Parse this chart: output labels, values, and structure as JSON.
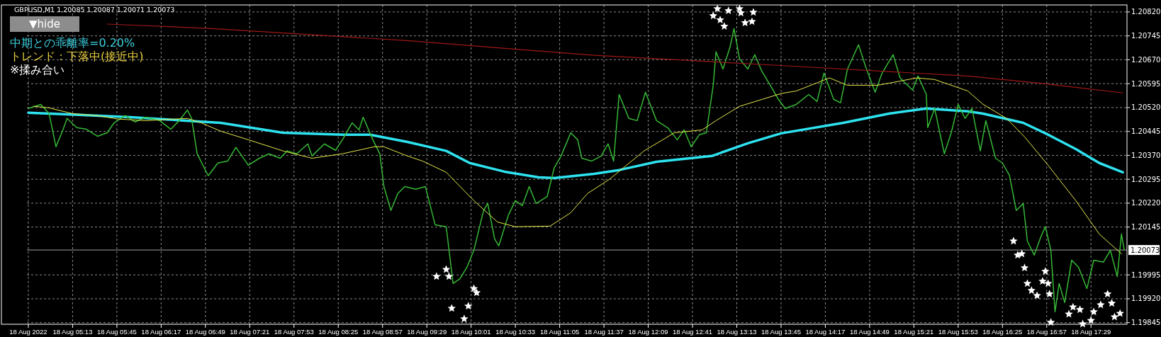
{
  "chart_data": {
    "type": "line",
    "title": "GBPUSD,M1  1.20085 1.20087 1.20071 1.20073",
    "annotations": [
      "▼hide",
      "中期との乖離率=0.20%",
      "トレンド：下落中(接近中)",
      "※揉み合い"
    ],
    "xlim": [
      "2022-08-18T04:40",
      "2022-08-18T17:55"
    ],
    "ylim": [
      1.1984,
      1.20842
    ],
    "xticks": [
      {
        "value": "2022-08-18T04:41",
        "label": "18 Aug 2022"
      },
      {
        "value": "2022-08-18T05:13",
        "label": "18 Aug 05:13"
      },
      {
        "value": "2022-08-18T05:45",
        "label": "18 Aug 05:45"
      },
      {
        "value": "2022-08-18T06:17",
        "label": "18 Aug 06:17"
      },
      {
        "value": "2022-08-18T06:49",
        "label": "18 Aug 06:49"
      },
      {
        "value": "2022-08-18T07:21",
        "label": "18 Aug 07:21"
      },
      {
        "value": "2022-08-18T07:53",
        "label": "18 Aug 07:53"
      },
      {
        "value": "2022-08-18T08:25",
        "label": "18 Aug 08:25"
      },
      {
        "value": "2022-08-18T08:57",
        "label": "18 Aug 08:57"
      },
      {
        "value": "2022-08-18T09:29",
        "label": "18 Aug 09:29"
      },
      {
        "value": "2022-08-18T10:01",
        "label": "18 Aug 10:01"
      },
      {
        "value": "2022-08-18T10:33",
        "label": "18 Aug 10:33"
      },
      {
        "value": "2022-08-18T11:05",
        "label": "18 Aug 11:05"
      },
      {
        "value": "2022-08-18T11:37",
        "label": "18 Aug 11:37"
      },
      {
        "value": "2022-08-18T12:09",
        "label": "18 Aug 12:09"
      },
      {
        "value": "2022-08-18T12:41",
        "label": "18 Aug 12:41"
      },
      {
        "value": "2022-08-18T13:13",
        "label": "18 Aug 13:13"
      },
      {
        "value": "2022-08-18T13:45",
        "label": "18 Aug 13:45"
      },
      {
        "value": "2022-08-18T14:17",
        "label": "18 Aug 14:17"
      },
      {
        "value": "2022-08-18T14:49",
        "label": "18 Aug 14:49"
      },
      {
        "value": "2022-08-18T15:21",
        "label": "18 Aug 15:21"
      },
      {
        "value": "2022-08-18T15:53",
        "label": "18 Aug 15:53"
      },
      {
        "value": "2022-08-18T16:25",
        "label": "18 Aug 16:25"
      },
      {
        "value": "2022-08-18T16:57",
        "label": "18 Aug 16:57"
      },
      {
        "value": "2022-08-18T17:29",
        "label": "18 Aug 17:29"
      }
    ],
    "yticks": [
      {
        "value": 1.2082,
        "label": "1.20820"
      },
      {
        "value": 1.20745,
        "label": "1.20745"
      },
      {
        "value": 1.2067,
        "label": "1.20670"
      },
      {
        "value": 1.20595,
        "label": "1.20595"
      },
      {
        "value": 1.2052,
        "label": "1.20520"
      },
      {
        "value": 1.20445,
        "label": "1.20445"
      },
      {
        "value": 1.2037,
        "label": "1.20370"
      },
      {
        "value": 1.20295,
        "label": "1.20295"
      },
      {
        "value": 1.2022,
        "label": "1.20220"
      },
      {
        "value": 1.20145,
        "label": "1.20145"
      },
      {
        "value": 1.19995,
        "label": "1.19995"
      },
      {
        "value": 1.1992,
        "label": "1.19920"
      },
      {
        "value": 1.19845,
        "label": "1.19845"
      }
    ],
    "grid": true,
    "ref_lines": [
      {
        "axis": "y",
        "value": 1.20073,
        "label": "1.20073",
        "color": "#808080"
      }
    ],
    "series": [
      {
        "type": "line",
        "color": "#a01818",
        "x": [
          "2022-08-18T05:38",
          "2022-08-18T06:54",
          "2022-08-18T09:15",
          "2022-08-18T11:30",
          "2022-08-18T13:45",
          "2022-08-18T16:00",
          "2022-08-18T16:55",
          "2022-08-18T17:52"
        ],
        "values": [
          1.20782,
          1.20768,
          1.2073,
          1.20684,
          1.20652,
          1.20619,
          1.20595,
          1.20566
        ]
      },
      {
        "type": "line",
        "color": "#36b836",
        "x": [
          "2022-08-18T04:41",
          "2022-08-18T04:50",
          "2022-08-18T04:56",
          "2022-08-18T05:01",
          "2022-08-18T05:06",
          "2022-08-18T05:09",
          "2022-08-18T05:16",
          "2022-08-18T05:23",
          "2022-08-18T05:31",
          "2022-08-18T05:38",
          "2022-08-18T05:43",
          "2022-08-18T05:51",
          "2022-08-18T05:58",
          "2022-08-18T06:06",
          "2022-08-18T06:16",
          "2022-08-18T06:24",
          "2022-08-18T06:30",
          "2022-08-18T06:36",
          "2022-08-18T06:39",
          "2022-08-18T06:43",
          "2022-08-18T06:51",
          "2022-08-18T06:58",
          "2022-08-18T07:05",
          "2022-08-18T07:11",
          "2022-08-18T07:20",
          "2022-08-18T07:28",
          "2022-08-18T07:35",
          "2022-08-18T07:43",
          "2022-08-18T07:48",
          "2022-08-18T07:55",
          "2022-08-18T08:03",
          "2022-08-18T08:06",
          "2022-08-18T08:15",
          "2022-08-18T08:23",
          "2022-08-18T08:28",
          "2022-08-18T08:35",
          "2022-08-18T08:40",
          "2022-08-18T08:43",
          "2022-08-18T08:50",
          "2022-08-18T08:55",
          "2022-08-18T08:58",
          "2022-08-18T09:03",
          "2022-08-18T09:08",
          "2022-08-18T09:13",
          "2022-08-18T09:21",
          "2022-08-18T09:28",
          "2022-08-18T09:35",
          "2022-08-18T09:43",
          "2022-08-18T09:48",
          "2022-08-18T09:53",
          "2022-08-18T09:58",
          "2022-08-18T10:03",
          "2022-08-18T10:10",
          "2022-08-18T10:13",
          "2022-08-18T10:18",
          "2022-08-18T10:21",
          "2022-08-18T10:28",
          "2022-08-18T10:33",
          "2022-08-18T10:38",
          "2022-08-18T10:43",
          "2022-08-18T10:48",
          "2022-08-18T10:56",
          "2022-08-18T11:01",
          "2022-08-18T11:06",
          "2022-08-18T11:13",
          "2022-08-18T11:18",
          "2022-08-18T11:21",
          "2022-08-18T11:28",
          "2022-08-18T11:35",
          "2022-08-18T11:40",
          "2022-08-18T11:44",
          "2022-08-18T11:48",
          "2022-08-18T11:55",
          "2022-08-18T12:01",
          "2022-08-18T12:07",
          "2022-08-18T12:15",
          "2022-08-18T12:23",
          "2022-08-18T12:30",
          "2022-08-18T12:35",
          "2022-08-18T12:40",
          "2022-08-18T12:46",
          "2022-08-18T12:51",
          "2022-08-18T12:56",
          "2022-08-18T12:58",
          "2022-08-18T13:03",
          "2022-08-18T13:08",
          "2022-08-18T13:11",
          "2022-08-18T13:15",
          "2022-08-18T13:21",
          "2022-08-18T13:26",
          "2022-08-18T13:31",
          "2022-08-18T13:38",
          "2022-08-18T13:43",
          "2022-08-18T13:48",
          "2022-08-18T13:56",
          "2022-08-18T14:05",
          "2022-08-18T14:11",
          "2022-08-18T14:16",
          "2022-08-18T14:23",
          "2022-08-18T14:28",
          "2022-08-18T14:33",
          "2022-08-18T14:41",
          "2022-08-18T14:46",
          "2022-08-18T14:53",
          "2022-08-18T14:58",
          "2022-08-18T15:06",
          "2022-08-18T15:11",
          "2022-08-18T15:20",
          "2022-08-18T15:24",
          "2022-08-18T15:30",
          "2022-08-18T15:31",
          "2022-08-18T15:36",
          "2022-08-18T15:43",
          "2022-08-18T15:48",
          "2022-08-18T15:53",
          "2022-08-18T15:58",
          "2022-08-18T16:03",
          "2022-08-18T16:09",
          "2022-08-18T16:13",
          "2022-08-18T16:20",
          "2022-08-18T16:25",
          "2022-08-18T16:30",
          "2022-08-18T16:35",
          "2022-08-18T16:40",
          "2022-08-18T16:43",
          "2022-08-18T16:48",
          "2022-08-18T16:53",
          "2022-08-18T16:56",
          "2022-08-18T17:00",
          "2022-08-18T17:03",
          "2022-08-18T17:06",
          "2022-08-18T17:10",
          "2022-08-18T17:15",
          "2022-08-18T17:20",
          "2022-08-18T17:26",
          "2022-08-18T17:31",
          "2022-08-18T17:38",
          "2022-08-18T17:43",
          "2022-08-18T17:48",
          "2022-08-18T17:51",
          "2022-08-18T17:53"
        ],
        "values": [
          1.20517,
          1.2053,
          1.20501,
          1.20397,
          1.2045,
          1.20486,
          1.20457,
          1.20452,
          1.2043,
          1.20441,
          1.20472,
          1.20495,
          1.20475,
          1.2049,
          1.20479,
          1.20452,
          1.20479,
          1.20512,
          1.20486,
          1.20375,
          1.20306,
          1.20346,
          1.20352,
          1.20395,
          1.20339,
          1.20361,
          1.20375,
          1.20361,
          1.20384,
          1.20375,
          1.20406,
          1.20368,
          1.20406,
          1.20386,
          1.20419,
          1.20472,
          1.2045,
          1.2049,
          1.20419,
          1.20375,
          1.20272,
          1.20197,
          1.2025,
          1.20272,
          1.20264,
          1.20272,
          1.20152,
          1.20146,
          1.19968,
          1.19983,
          1.20019,
          1.20072,
          1.20197,
          1.20219,
          1.20108,
          1.20086,
          1.20183,
          1.20228,
          1.20212,
          1.20272,
          1.20219,
          1.20241,
          1.2033,
          1.20368,
          1.20441,
          1.20419,
          1.20361,
          1.20352,
          1.20368,
          1.20406,
          1.20352,
          1.20561,
          1.20486,
          1.20479,
          1.20568,
          1.20479,
          1.20457,
          1.20419,
          1.2045,
          1.20397,
          1.20435,
          1.20441,
          1.2059,
          1.20695,
          1.20641,
          1.20708,
          1.20768,
          1.20673,
          1.20641,
          1.20686,
          1.20635,
          1.20584,
          1.20546,
          1.20517,
          1.2053,
          1.20561,
          1.20539,
          1.20628,
          1.20546,
          1.20535,
          1.20641,
          1.20717,
          1.2065,
          1.20568,
          1.20628,
          1.20686,
          1.20613,
          1.20575,
          1.20619,
          1.20561,
          1.20457,
          1.20517,
          1.20375,
          1.20441,
          1.2053,
          1.20486,
          1.20517,
          1.20384,
          1.20479,
          1.20361,
          1.20346,
          1.20308,
          1.20197,
          1.20219,
          1.20101,
          1.20057,
          1.20117,
          1.20146,
          1.20072,
          1.19879,
          1.19968,
          1.19908,
          1.20041,
          1.20019,
          1.19952,
          1.20041,
          1.20035,
          1.20072,
          1.1999,
          1.20123,
          1.20073
        ]
      },
      {
        "type": "line",
        "color": "#e8e84a",
        "x": [
          "2022-08-18T04:45",
          "2022-08-18T04:56",
          "2022-08-18T05:13",
          "2022-08-18T05:30",
          "2022-08-18T05:46",
          "2022-08-18T06:06",
          "2022-08-18T06:36",
          "2022-08-18T06:46",
          "2022-08-18T07:00",
          "2022-08-18T07:20",
          "2022-08-18T07:45",
          "2022-08-18T08:06",
          "2022-08-18T08:28",
          "2022-08-18T08:51",
          "2022-08-18T08:58",
          "2022-08-18T09:15",
          "2022-08-18T09:26",
          "2022-08-18T09:43",
          "2022-08-18T10:03",
          "2022-08-18T10:20",
          "2022-08-18T10:33",
          "2022-08-18T10:58",
          "2022-08-18T11:13",
          "2022-08-18T11:25",
          "2022-08-18T11:41",
          "2022-08-18T12:06",
          "2022-08-18T12:28",
          "2022-08-18T12:48",
          "2022-08-18T12:58",
          "2022-08-18T13:15",
          "2022-08-18T13:45",
          "2022-08-18T13:56",
          "2022-08-18T14:20",
          "2022-08-18T14:33",
          "2022-08-18T14:55",
          "2022-08-18T15:23",
          "2022-08-18T15:36",
          "2022-08-18T16:00",
          "2022-08-18T16:11",
          "2022-08-18T16:28",
          "2022-08-18T16:41",
          "2022-08-18T16:58",
          "2022-08-18T17:18",
          "2022-08-18T17:35",
          "2022-08-18T17:51"
        ],
        "values": [
          1.20524,
          1.20519,
          1.20501,
          1.20495,
          1.20484,
          1.20479,
          1.20486,
          1.20472,
          1.20446,
          1.20419,
          1.20384,
          1.20361,
          1.20375,
          1.20397,
          1.20397,
          1.20368,
          1.20352,
          1.20317,
          1.20228,
          1.20161,
          1.20146,
          1.20148,
          1.2019,
          1.2025,
          1.20295,
          1.20384,
          1.20441,
          1.2045,
          1.20479,
          1.20524,
          1.20564,
          1.20572,
          1.20613,
          1.2059,
          1.2059,
          1.20613,
          1.20608,
          1.20572,
          1.2053,
          1.20486,
          1.20428,
          1.20339,
          1.20228,
          1.20123,
          1.20061
        ]
      },
      {
        "type": "line",
        "color": "#2ee3f0",
        "x": [
          "2022-08-18T04:41",
          "2022-08-18T05:09",
          "2022-08-18T05:55",
          "2022-08-18T07:00",
          "2022-08-18T07:45",
          "2022-08-18T08:28",
          "2022-08-18T08:48",
          "2022-08-18T09:15",
          "2022-08-18T09:43",
          "2022-08-18T10:00",
          "2022-08-18T10:25",
          "2022-08-18T10:50",
          "2022-08-18T11:01",
          "2022-08-18T11:30",
          "2022-08-18T11:48",
          "2022-08-18T12:15",
          "2022-08-18T12:55",
          "2022-08-18T13:21",
          "2022-08-18T13:45",
          "2022-08-18T14:30",
          "2022-08-18T15:03",
          "2022-08-18T15:30",
          "2022-08-18T16:00",
          "2022-08-18T16:11",
          "2022-08-18T16:40",
          "2022-08-18T16:58",
          "2022-08-18T17:18",
          "2022-08-18T17:35",
          "2022-08-18T17:52"
        ],
        "values": [
          1.20504,
          1.20499,
          1.2049,
          1.20472,
          1.20441,
          1.20435,
          1.20435,
          1.20412,
          1.20384,
          1.20346,
          1.20319,
          1.20301,
          1.20299,
          1.20312,
          1.20324,
          1.2035,
          1.20368,
          1.20408,
          1.20439,
          1.20472,
          1.20501,
          1.20517,
          1.20508,
          1.20501,
          1.20472,
          1.20435,
          1.2039,
          1.20346,
          1.20317
        ]
      },
      {
        "type": "scatter",
        "marker": "star",
        "color": "#ffffff",
        "x": [
          "2022-08-18T09:36",
          "2022-08-18T09:43",
          "2022-08-18T09:45",
          "2022-08-18T09:47",
          "2022-08-18T09:56",
          "2022-08-18T09:59",
          "2022-08-18T10:03",
          "2022-08-18T10:05",
          "2022-08-18T12:56",
          "2022-08-18T12:59",
          "2022-08-18T13:01",
          "2022-08-18T13:04",
          "2022-08-18T13:07",
          "2022-08-18T13:15",
          "2022-08-18T13:16",
          "2022-08-18T13:19",
          "2022-08-18T13:24",
          "2022-08-18T13:25",
          "2022-08-18T16:33",
          "2022-08-18T16:36",
          "2022-08-18T16:39",
          "2022-08-18T16:41",
          "2022-08-18T16:43",
          "2022-08-18T16:46",
          "2022-08-18T16:50",
          "2022-08-18T16:54",
          "2022-08-18T16:56",
          "2022-08-18T16:58",
          "2022-08-18T16:59",
          "2022-08-18T17:00",
          "2022-08-18T17:13",
          "2022-08-18T17:16",
          "2022-08-18T17:21",
          "2022-08-18T17:23",
          "2022-08-18T17:29",
          "2022-08-18T17:31",
          "2022-08-18T17:36",
          "2022-08-18T17:41",
          "2022-08-18T17:44",
          "2022-08-18T17:46",
          "2022-08-18T17:50"
        ],
        "values": [
          1.1999,
          1.20012,
          1.1999,
          1.1989,
          1.19857,
          1.19897,
          1.19952,
          1.19939,
          1.20808,
          1.2083,
          1.20795,
          1.20775,
          1.20824,
          1.2083,
          1.20817,
          1.20786,
          1.2079,
          1.20819,
          1.20101,
          1.20057,
          1.20061,
          1.20017,
          1.19968,
          1.19946,
          1.1993,
          1.19975,
          1.20006,
          1.19968,
          1.19935,
          1.19846,
          1.19872,
          1.19894,
          1.19886,
          1.19841,
          1.19852,
          1.19879,
          1.19901,
          1.19935,
          1.19906,
          1.19863,
          1.19874
        ]
      }
    ]
  }
}
